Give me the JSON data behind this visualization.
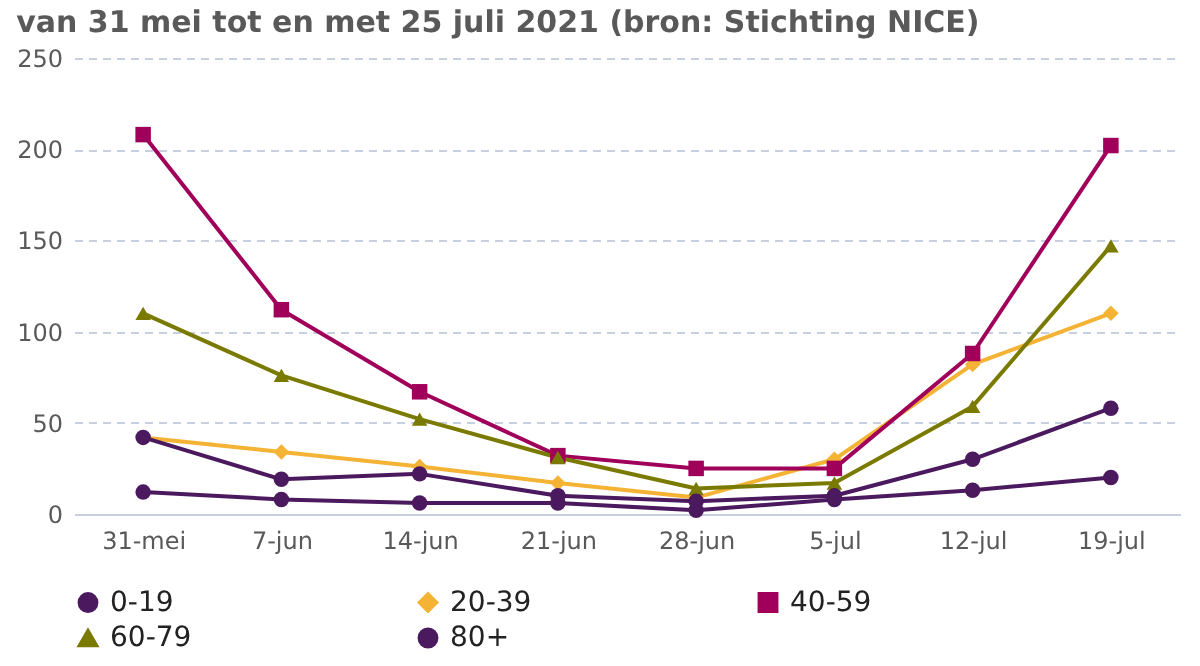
{
  "chart_data": {
    "type": "line",
    "title": "van 31 mei tot en met 25 juli 2021 (bron: Stichting NICE)",
    "categories": [
      "31-mei",
      "7-jun",
      "14-jun",
      "21-jun",
      "28-jun",
      "5-jul",
      "12-jul",
      "19-jul"
    ],
    "series": [
      {
        "name": "0-19",
        "color": "#4b1a5e",
        "marker": "circle",
        "values": [
          12,
          8,
          6,
          6,
          2,
          8,
          13,
          20
        ]
      },
      {
        "name": "20-39",
        "color": "#f5b335",
        "marker": "diamond",
        "values": [
          42,
          34,
          26,
          17,
          9,
          30,
          82,
          110
        ]
      },
      {
        "name": "40-59",
        "color": "#a0005a",
        "marker": "square",
        "values": [
          208,
          112,
          67,
          32,
          25,
          25,
          88,
          202
        ]
      },
      {
        "name": "60-79",
        "color": "#7a7a00",
        "marker": "triangle",
        "values": [
          110,
          76,
          52,
          31,
          14,
          17,
          59,
          147
        ]
      },
      {
        "name": "80+",
        "color": "#4b1a5e",
        "marker": "circle",
        "values": [
          42,
          19,
          22,
          10,
          7,
          10,
          30,
          58
        ]
      }
    ],
    "ylim": [
      0,
      250
    ],
    "yticks": [
      0,
      50,
      100,
      150,
      200,
      250
    ],
    "grid": "y",
    "legend": "bottom",
    "line_style": "solid"
  }
}
